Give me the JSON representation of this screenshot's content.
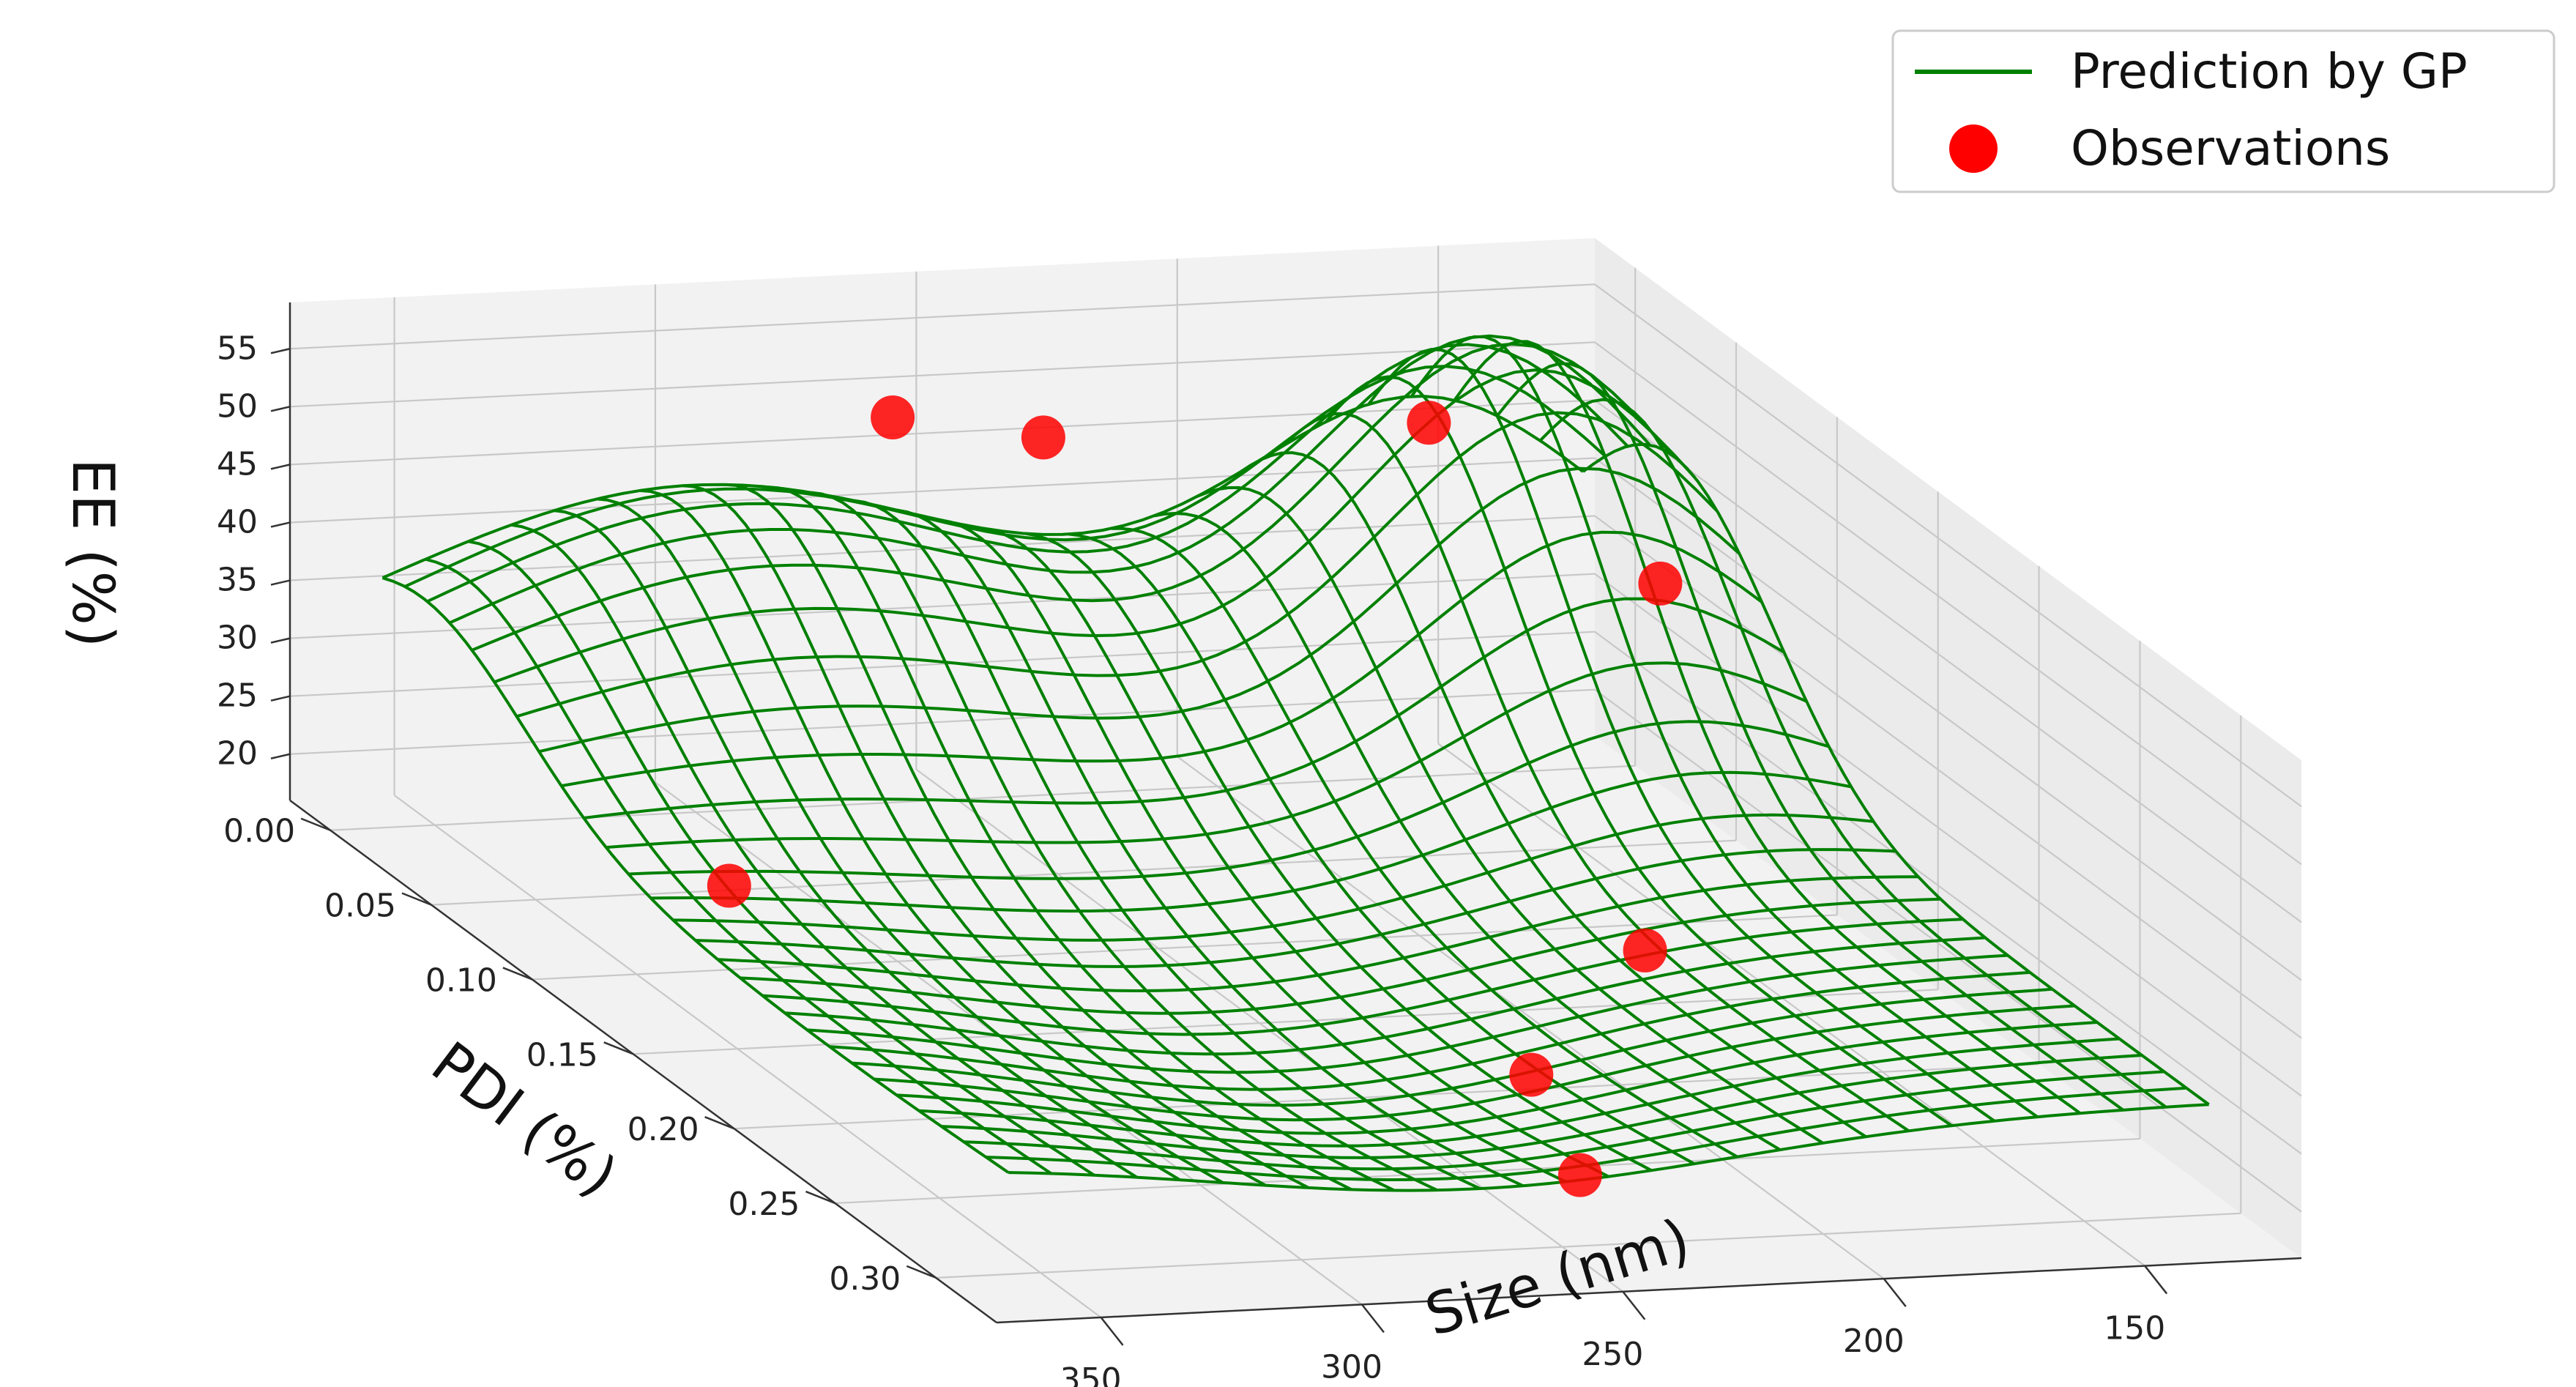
{
  "chart_data": {
    "type": "surface3d",
    "title": "",
    "xlabel": "Size (nm)",
    "ylabel": "PDI (%)",
    "zlabel": "EE (%)",
    "x_ticks": [
      "150",
      "200",
      "250",
      "300",
      "350"
    ],
    "y_ticks": [
      "0.00",
      "0.05",
      "0.10",
      "0.15",
      "0.20",
      "0.25",
      "0.30"
    ],
    "z_ticks": [
      "20",
      "25",
      "30",
      "35",
      "40",
      "45",
      "50",
      "55"
    ],
    "xlim": [
      120,
      370
    ],
    "ylim": [
      -0.02,
      0.33
    ],
    "zlim": [
      16,
      59
    ],
    "legend": {
      "position": "top-right",
      "entries": [
        {
          "label": "Prediction by GP",
          "kind": "line",
          "color": "#008000"
        },
        {
          "label": "Observations",
          "kind": "marker",
          "color": "#ff0000"
        }
      ]
    },
    "surface": {
      "name": "Prediction by GP",
      "color": "#008000",
      "x_range": [
        130,
        360
      ],
      "y_range": [
        0.0,
        0.31
      ],
      "grid": 28,
      "model": {
        "base": 27,
        "bumps": [
          {
            "x": 160,
            "y": 0.045,
            "sx": 35,
            "sy": 0.05,
            "amp": 31
          },
          {
            "x": 300,
            "y": 0.02,
            "sx": 60,
            "sy": 0.05,
            "amp": 19
          },
          {
            "x": 270,
            "y": 0.22,
            "sx": 50,
            "sy": 0.09,
            "amp": -7
          }
        ]
      }
    },
    "series": [
      {
        "name": "Observations",
        "type": "scatter",
        "color": "#ff0000",
        "points": [
          {
            "x": 175,
            "y": 0.04,
            "z": 52
          },
          {
            "x": 150,
            "y": 0.09,
            "z": 44
          },
          {
            "x": 245,
            "y": 0.03,
            "z": 51
          },
          {
            "x": 270,
            "y": 0.02,
            "z": 52
          },
          {
            "x": 180,
            "y": 0.16,
            "z": 22
          },
          {
            "x": 340,
            "y": 0.12,
            "z": 26
          },
          {
            "x": 225,
            "y": 0.22,
            "z": 20
          },
          {
            "x": 235,
            "y": 0.27,
            "z": 18
          }
        ]
      }
    ]
  }
}
